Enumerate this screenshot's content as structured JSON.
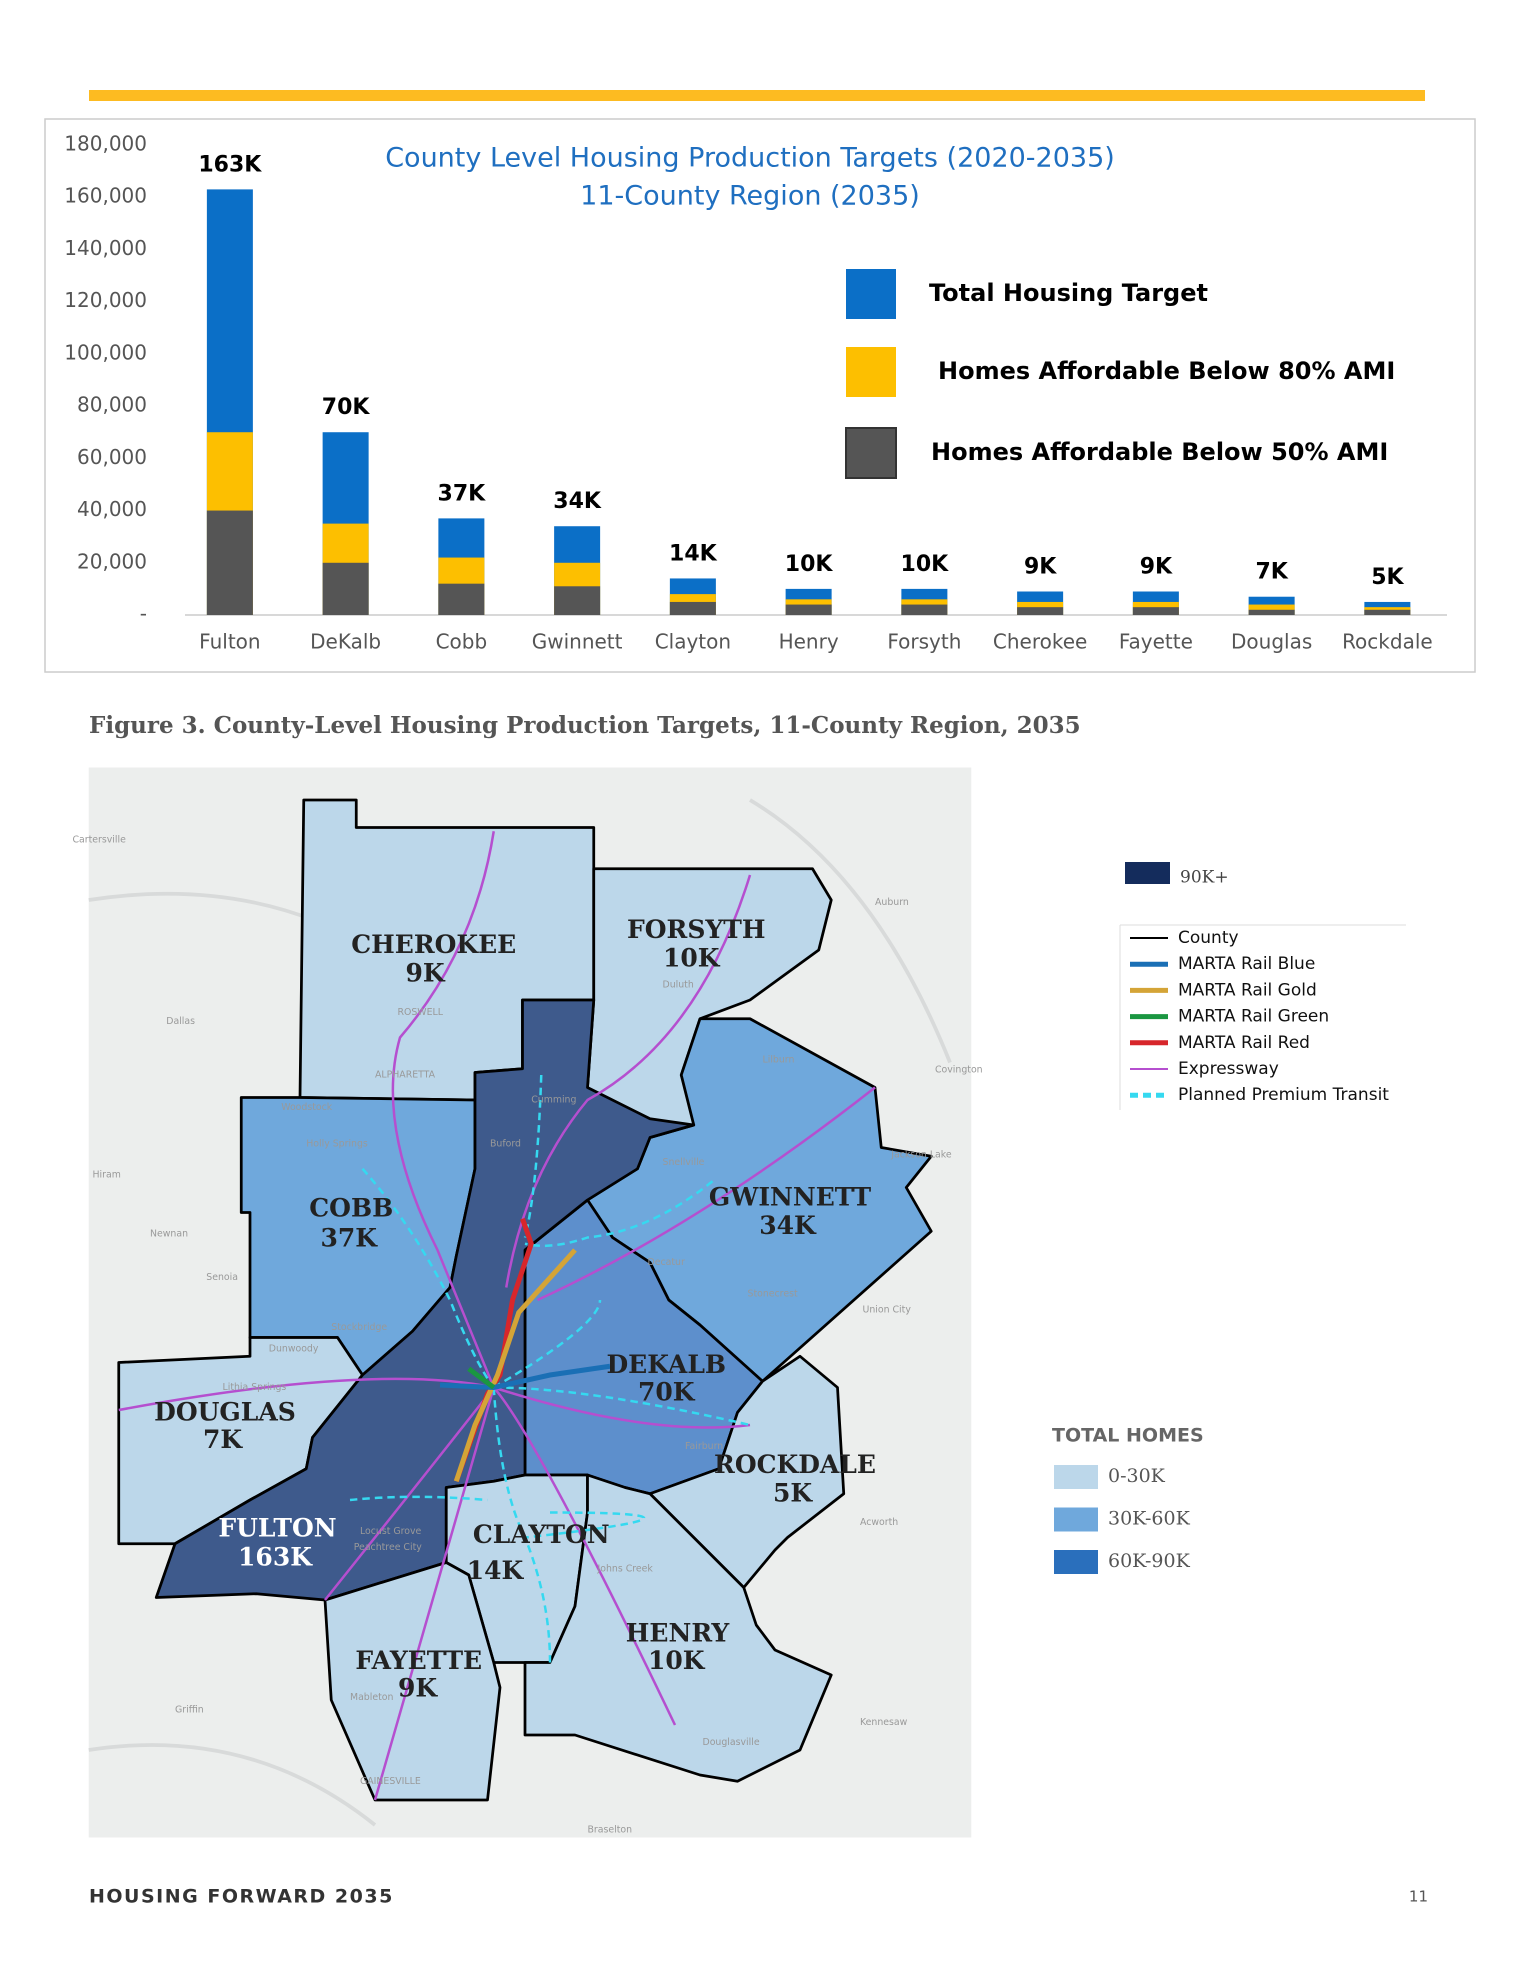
{
  "chart_data": {
    "type": "bar",
    "title": "County Level Housing Production Targets (2020-2035)",
    "subtitle": "11-County Region (2035)",
    "categories": [
      "Fulton",
      "DeKalb",
      "Cobb",
      "Gwinnett",
      "Clayton",
      "Henry",
      "Forsyth",
      "Cherokee",
      "Fayette",
      "Douglas",
      "Rockdale"
    ],
    "series": [
      {
        "name": "Total Housing Target",
        "color": "#0b6fc7",
        "values": [
          163000,
          70000,
          37000,
          34000,
          14000,
          10000,
          10000,
          9000,
          9000,
          7000,
          5000
        ],
        "value_labels": [
          "163K",
          "70K",
          "37K",
          "34K",
          "14K",
          "10K",
          "10K",
          "9K",
          "9K",
          "7K",
          "5K"
        ]
      },
      {
        "name": "Homes Affordable Below 80% AMI",
        "color": "#fdbf00",
        "values": [
          70000,
          35000,
          22000,
          20000,
          8000,
          6000,
          6000,
          5000,
          5000,
          4000,
          3000
        ]
      },
      {
        "name": "Homes Affordable Below 50% AMI",
        "color": "#555555",
        "values": [
          40000,
          20000,
          12000,
          11000,
          5000,
          4000,
          4000,
          3000,
          3000,
          2000,
          2000
        ]
      }
    ],
    "ylim": [
      0,
      180000
    ],
    "yticks": [
      {
        "value": 0,
        "label": "-"
      },
      {
        "value": 20000,
        "label": "20,000"
      },
      {
        "value": 40000,
        "label": "40,000"
      },
      {
        "value": 60000,
        "label": "60,000"
      },
      {
        "value": 80000,
        "label": "80,000"
      },
      {
        "value": 100000,
        "label": "100,000"
      },
      {
        "value": 120000,
        "label": "120,000"
      },
      {
        "value": 140000,
        "label": "140,000"
      },
      {
        "value": 160000,
        "label": "160,000"
      },
      {
        "value": 180000,
        "label": "180,000"
      }
    ],
    "legend": "right",
    "overlap": true
  },
  "figure_caption": "Figure 3. County-Level Housing Production Targets, 11-County Region, 2035",
  "map": {
    "counties": [
      {
        "name": "CHEROKEE",
        "value": "9K"
      },
      {
        "name": "FORSYTH",
        "value": "10K"
      },
      {
        "name": "COBB",
        "value": "37K"
      },
      {
        "name": "GWINNETT",
        "value": "34K"
      },
      {
        "name": "DEKALB",
        "value": "70K"
      },
      {
        "name": "DOUGLAS",
        "value": "7K"
      },
      {
        "name": "ROCKDALE",
        "value": "5K"
      },
      {
        "name": "FULTON",
        "value": "163K"
      },
      {
        "name": "CLAYTON",
        "value": "14K"
      },
      {
        "name": "HENRY",
        "value": "10K"
      },
      {
        "name": "FAYETTE",
        "value": "9K"
      }
    ],
    "places": [
      "Cartersville",
      "Dallas",
      "Hiram",
      "Newnan",
      "Senoia",
      "Griffin",
      "GAINESVILLE",
      "Braselton",
      "Auburn",
      "Covington",
      "Jackson Lake",
      "Acworth",
      "Kennesaw",
      "Woodstock",
      "Holly Springs",
      "ALPHARETTA",
      "ROSWELL",
      "Cumming",
      "Buford",
      "Duluth",
      "Lilburn",
      "Snellville",
      "Decatur",
      "Stonecrest",
      "Union City",
      "Fairburn",
      "Locust Grove",
      "Peachtree City",
      "Douglasville",
      "Mableton",
      "Lithia Springs",
      "Stockbridge",
      "Dunwoody",
      "Johns Creek"
    ],
    "legend_top": "90K+",
    "line_legend": [
      {
        "name": "County",
        "color": "#000000"
      },
      {
        "name": "MARTA Rail Blue",
        "color": "#1a6fb5"
      },
      {
        "name": "MARTA Rail Gold",
        "color": "#d4a437"
      },
      {
        "name": "MARTA Rail Green",
        "color": "#1a9641"
      },
      {
        "name": "MARTA Rail Red",
        "color": "#d7262b"
      },
      {
        "name": "Expressway",
        "color": "#b54fcf"
      },
      {
        "name": "Planned Premium Transit",
        "color": "#35d9f0"
      }
    ],
    "total_homes_title": "TOTAL HOMES",
    "total_homes": [
      {
        "label": "0-30K",
        "color": "#bcd7ea"
      },
      {
        "label": "30K-60K",
        "color": "#6fa8dc"
      },
      {
        "label": "60K-90K",
        "color": "#2a6fbc"
      }
    ],
    "top_color": "#142c5c"
  },
  "footer": {
    "left": "HOUSING  FORWARD  2035",
    "page": "11"
  }
}
